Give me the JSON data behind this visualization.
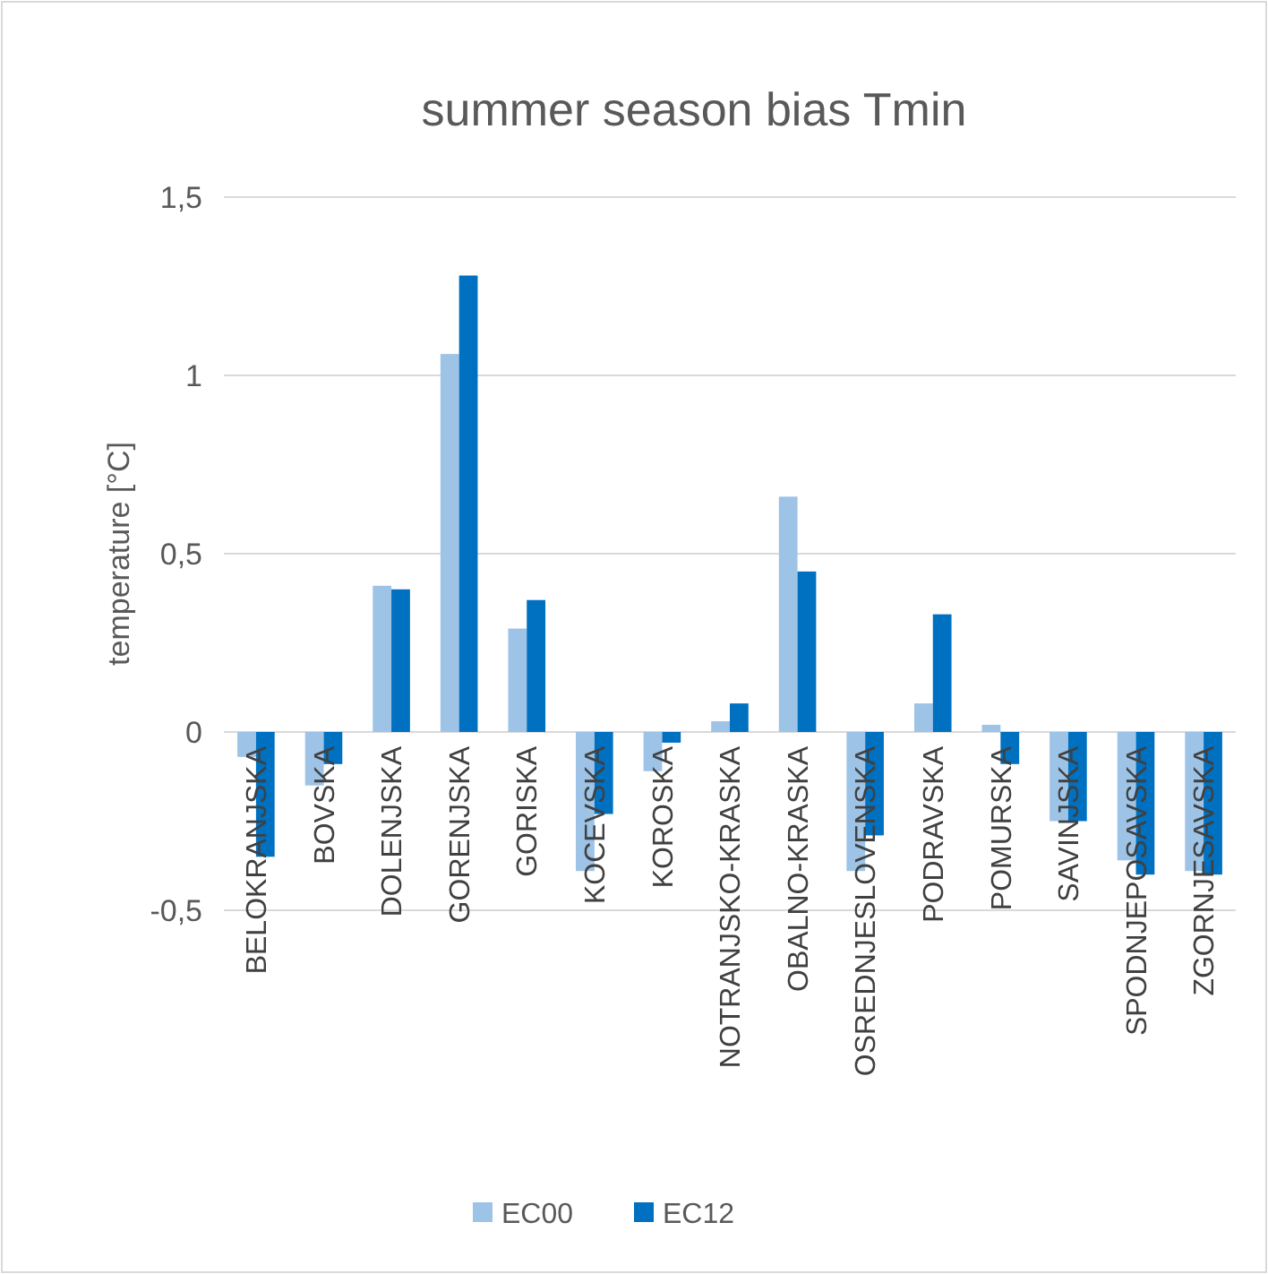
{
  "chart_data": {
    "type": "bar",
    "title": "summer season bias Tmin",
    "ylabel": "temperature [°C]",
    "categories": [
      "BELOKRANJSKA",
      "BOVSKA",
      "DOLENJSKA",
      "GORENJSKA",
      "GORISKA",
      "KOCEVSKA",
      "KOROSKA",
      "NOTRANJSKO-KRASKA",
      "OBALNO-KRASKA",
      "OSREDNJESLOVENSKA",
      "PODRAVSKA",
      "POMURSKA",
      "SAVINJSKA",
      "SPODNJEPOSAVSKA",
      "ZGORNJESAVSKA"
    ],
    "series": [
      {
        "name": "EC00",
        "color": "#9dc3e6",
        "values": [
          -0.07,
          -0.15,
          0.41,
          1.06,
          0.29,
          -0.39,
          -0.11,
          0.03,
          0.66,
          -0.39,
          0.08,
          0.02,
          -0.25,
          -0.36,
          -0.39
        ]
      },
      {
        "name": "EC12",
        "color": "#0070c0",
        "values": [
          -0.35,
          -0.09,
          0.4,
          1.28,
          0.37,
          -0.23,
          -0.03,
          0.08,
          0.45,
          -0.29,
          0.33,
          -0.09,
          -0.25,
          -0.4,
          -0.4
        ]
      }
    ],
    "ylim": [
      -0.5,
      1.5
    ],
    "yticks": [
      {
        "value": -0.5,
        "label": "-0,5"
      },
      0,
      {
        "value": 0.5,
        "label": "0,5"
      },
      1,
      {
        "value": 1.5,
        "label": "1,5"
      }
    ],
    "grid": "y",
    "legend": "bottom"
  }
}
